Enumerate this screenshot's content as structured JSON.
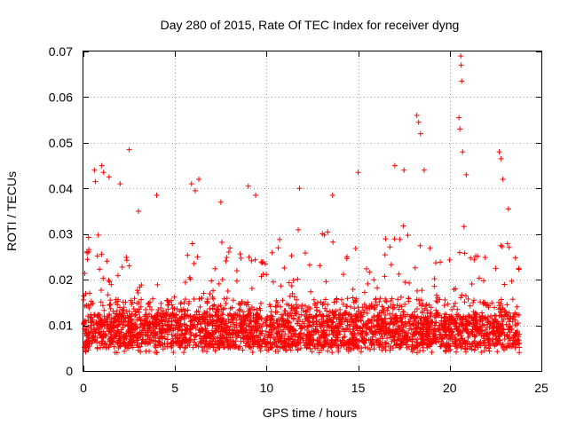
{
  "chart_data": {
    "type": "scatter",
    "title": "Day 280 of 2015, Rate Of TEC Index for receiver dyng",
    "xlabel": "GPS time / hours",
    "ylabel": "ROTI / TECUs",
    "xlim": [
      0,
      25
    ],
    "ylim": [
      0,
      0.07
    ],
    "grid": true,
    "marker": "+",
    "color": "#ff0000",
    "x_ticks": [
      0,
      5,
      10,
      15,
      20,
      25
    ],
    "x_tick_labels": [
      "0",
      "5",
      "10",
      "15",
      "20",
      "25"
    ],
    "y_ticks": [
      0,
      0.01,
      0.02,
      0.03,
      0.04,
      0.05,
      0.06,
      0.07
    ],
    "y_tick_labels": [
      "0",
      "0.01",
      "0.02",
      "0.03",
      "0.04",
      "0.05",
      "0.06",
      "0.07"
    ],
    "data_x_range": [
      0,
      23.8
    ],
    "baseline": 0.009,
    "envelope": [
      [
        0.0,
        0.025
      ],
      [
        0.5,
        0.033
      ],
      [
        1.0,
        0.028
      ],
      [
        1.5,
        0.025
      ],
      [
        2.0,
        0.027
      ],
      [
        2.5,
        0.025
      ],
      [
        3.0,
        0.02
      ],
      [
        3.5,
        0.024
      ],
      [
        4.0,
        0.022
      ],
      [
        4.5,
        0.016
      ],
      [
        5.0,
        0.018
      ],
      [
        5.5,
        0.022
      ],
      [
        6.0,
        0.032
      ],
      [
        6.5,
        0.024
      ],
      [
        7.0,
        0.022
      ],
      [
        7.5,
        0.029
      ],
      [
        8.0,
        0.027
      ],
      [
        8.5,
        0.03
      ],
      [
        9.0,
        0.034
      ],
      [
        9.5,
        0.027
      ],
      [
        10.0,
        0.024
      ],
      [
        10.5,
        0.028
      ],
      [
        11.0,
        0.03
      ],
      [
        11.5,
        0.032
      ],
      [
        12.0,
        0.03
      ],
      [
        12.5,
        0.03
      ],
      [
        13.0,
        0.034
      ],
      [
        13.5,
        0.03
      ],
      [
        14.0,
        0.026
      ],
      [
        14.5,
        0.028
      ],
      [
        15.0,
        0.027
      ],
      [
        15.5,
        0.024
      ],
      [
        16.0,
        0.028
      ],
      [
        16.5,
        0.03
      ],
      [
        17.0,
        0.031
      ],
      [
        17.5,
        0.035
      ],
      [
        18.0,
        0.036
      ],
      [
        18.5,
        0.034
      ],
      [
        19.0,
        0.03
      ],
      [
        19.5,
        0.026
      ],
      [
        20.0,
        0.028
      ],
      [
        20.5,
        0.034
      ],
      [
        21.0,
        0.03
      ],
      [
        21.5,
        0.026
      ],
      [
        22.0,
        0.025
      ],
      [
        22.5,
        0.03
      ],
      [
        23.0,
        0.032
      ],
      [
        23.5,
        0.028
      ],
      [
        23.8,
        0.024
      ]
    ],
    "outliers": [
      {
        "x": 0.6,
        "y": 0.044
      },
      {
        "x": 0.65,
        "y": 0.0415
      },
      {
        "x": 1.0,
        "y": 0.045
      },
      {
        "x": 1.1,
        "y": 0.0435
      },
      {
        "x": 1.4,
        "y": 0.0425
      },
      {
        "x": 2.0,
        "y": 0.041
      },
      {
        "x": 2.5,
        "y": 0.0485
      },
      {
        "x": 3.0,
        "y": 0.035
      },
      {
        "x": 4.0,
        "y": 0.0385
      },
      {
        "x": 5.9,
        "y": 0.041
      },
      {
        "x": 6.1,
        "y": 0.0395
      },
      {
        "x": 6.3,
        "y": 0.042
      },
      {
        "x": 7.5,
        "y": 0.037
      },
      {
        "x": 9.0,
        "y": 0.0405
      },
      {
        "x": 9.4,
        "y": 0.0385
      },
      {
        "x": 11.8,
        "y": 0.04
      },
      {
        "x": 13.6,
        "y": 0.0385
      },
      {
        "x": 15.0,
        "y": 0.0435
      },
      {
        "x": 17.0,
        "y": 0.045
      },
      {
        "x": 17.5,
        "y": 0.044
      },
      {
        "x": 18.2,
        "y": 0.056
      },
      {
        "x": 18.3,
        "y": 0.0545
      },
      {
        "x": 18.4,
        "y": 0.052
      },
      {
        "x": 18.6,
        "y": 0.044
      },
      {
        "x": 20.5,
        "y": 0.0555
      },
      {
        "x": 20.55,
        "y": 0.053
      },
      {
        "x": 20.6,
        "y": 0.069
      },
      {
        "x": 20.62,
        "y": 0.067
      },
      {
        "x": 20.65,
        "y": 0.0635
      },
      {
        "x": 20.7,
        "y": 0.048
      },
      {
        "x": 20.9,
        "y": 0.043
      },
      {
        "x": 22.7,
        "y": 0.048
      },
      {
        "x": 22.8,
        "y": 0.0465
      },
      {
        "x": 22.9,
        "y": 0.042
      },
      {
        "x": 23.2,
        "y": 0.0355
      }
    ]
  }
}
